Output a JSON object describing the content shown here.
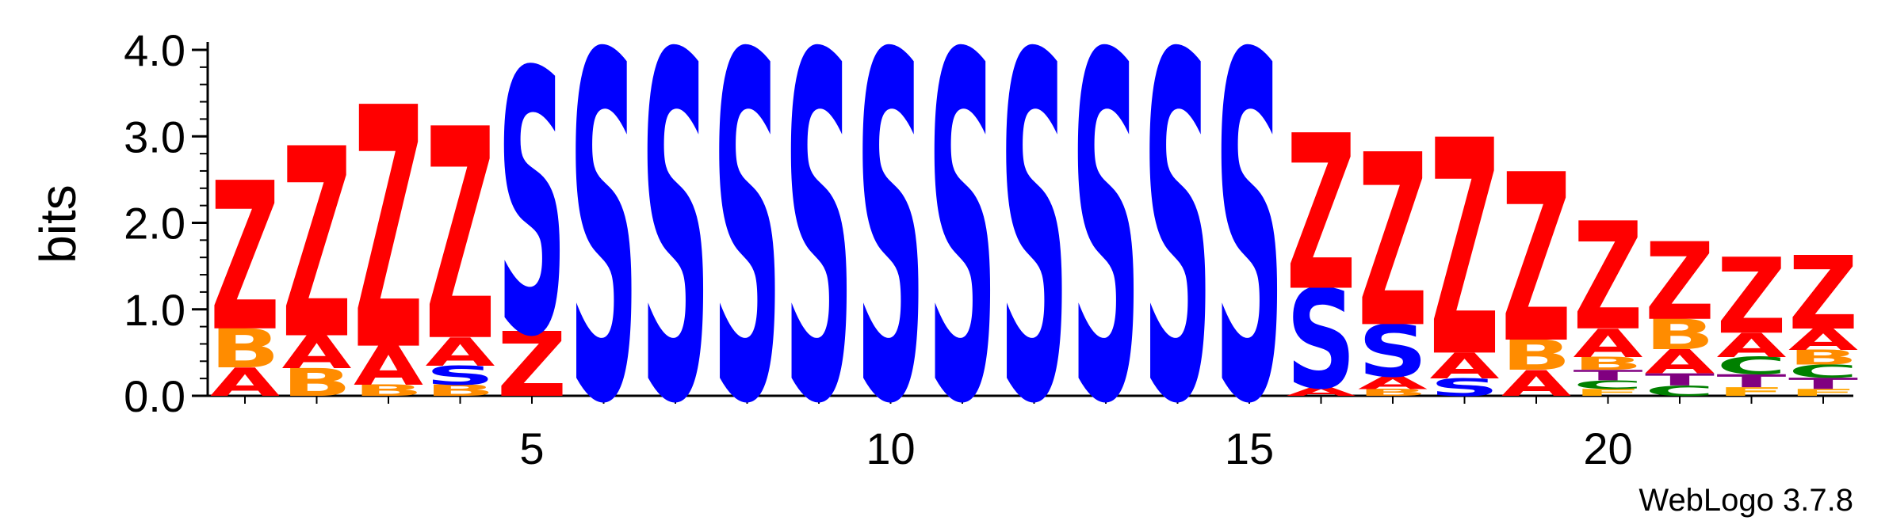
{
  "chart_data": {
    "type": "sequence-logo",
    "ylabel": "bits",
    "ylim": [
      0,
      4.0
    ],
    "yticks": [
      "0.0",
      "1.0",
      "2.0",
      "3.0",
      "4.0"
    ],
    "xticks": [
      5,
      10,
      15,
      20
    ],
    "footer": "WebLogo 3.7.8",
    "colors": {
      "Z": "#ff0000",
      "S": "#0000ff",
      "A": "#ff0000",
      "B": "#ff8c00",
      "C": "#008000",
      "T": "#800080",
      "F": "#ffa500"
    },
    "positions": [
      {
        "pos": 1,
        "stack": [
          {
            "letter": "A",
            "height": 0.33
          },
          {
            "letter": "B",
            "height": 0.45
          },
          {
            "letter": "Z",
            "height": 1.72
          }
        ]
      },
      {
        "pos": 2,
        "stack": [
          {
            "letter": "B",
            "height": 0.32
          },
          {
            "letter": "A",
            "height": 0.38
          },
          {
            "letter": "Z",
            "height": 2.2
          }
        ]
      },
      {
        "pos": 3,
        "stack": [
          {
            "letter": "B",
            "height": 0.13
          },
          {
            "letter": "A",
            "height": 0.45
          },
          {
            "letter": "Z",
            "height": 2.8
          }
        ]
      },
      {
        "pos": 4,
        "stack": [
          {
            "letter": "B",
            "height": 0.13
          },
          {
            "letter": "S",
            "height": 0.22
          },
          {
            "letter": "A",
            "height": 0.33
          },
          {
            "letter": "Z",
            "height": 2.45
          }
        ]
      },
      {
        "pos": 5,
        "stack": [
          {
            "letter": "Z",
            "height": 0.75
          },
          {
            "letter": "S",
            "height": 3.05
          }
        ]
      },
      {
        "pos": 6,
        "stack": [
          {
            "letter": "S",
            "height": 4.0
          }
        ]
      },
      {
        "pos": 7,
        "stack": [
          {
            "letter": "S",
            "height": 4.0
          }
        ]
      },
      {
        "pos": 8,
        "stack": [
          {
            "letter": "S",
            "height": 4.0
          }
        ]
      },
      {
        "pos": 9,
        "stack": [
          {
            "letter": "S",
            "height": 4.0
          }
        ]
      },
      {
        "pos": 10,
        "stack": [
          {
            "letter": "S",
            "height": 4.0
          }
        ]
      },
      {
        "pos": 11,
        "stack": [
          {
            "letter": "S",
            "height": 4.0
          }
        ]
      },
      {
        "pos": 12,
        "stack": [
          {
            "letter": "S",
            "height": 4.0
          }
        ]
      },
      {
        "pos": 13,
        "stack": [
          {
            "letter": "S",
            "height": 4.0
          }
        ]
      },
      {
        "pos": 14,
        "stack": [
          {
            "letter": "S",
            "height": 4.0
          }
        ]
      },
      {
        "pos": 15,
        "stack": [
          {
            "letter": "S",
            "height": 4.0
          }
        ]
      },
      {
        "pos": 16,
        "stack": [
          {
            "letter": "A",
            "height": 0.1
          },
          {
            "letter": "S",
            "height": 1.15
          },
          {
            "letter": "Z",
            "height": 1.8
          }
        ]
      },
      {
        "pos": 17,
        "stack": [
          {
            "letter": "B",
            "height": 0.08
          },
          {
            "letter": "A",
            "height": 0.15
          },
          {
            "letter": "S",
            "height": 0.6
          },
          {
            "letter": "Z",
            "height": 2.0
          }
        ]
      },
      {
        "pos": 18,
        "stack": [
          {
            "letter": "S",
            "height": 0.2
          },
          {
            "letter": "A",
            "height": 0.3
          },
          {
            "letter": "Z",
            "height": 2.5
          }
        ]
      },
      {
        "pos": 19,
        "stack": [
          {
            "letter": "A",
            "height": 0.3
          },
          {
            "letter": "B",
            "height": 0.35
          },
          {
            "letter": "Z",
            "height": 1.95
          }
        ]
      },
      {
        "pos": 20,
        "stack": [
          {
            "letter": "F",
            "height": 0.08
          },
          {
            "letter": "C",
            "height": 0.1
          },
          {
            "letter": "T",
            "height": 0.12
          },
          {
            "letter": "B",
            "height": 0.15
          },
          {
            "letter": "A",
            "height": 0.33
          },
          {
            "letter": "Z",
            "height": 1.25
          }
        ]
      },
      {
        "pos": 21,
        "stack": [
          {
            "letter": "C",
            "height": 0.12
          },
          {
            "letter": "T",
            "height": 0.14
          },
          {
            "letter": "A",
            "height": 0.28
          },
          {
            "letter": "B",
            "height": 0.35
          },
          {
            "letter": "Z",
            "height": 0.9
          }
        ]
      },
      {
        "pos": 22,
        "stack": [
          {
            "letter": "F",
            "height": 0.1
          },
          {
            "letter": "T",
            "height": 0.15
          },
          {
            "letter": "C",
            "height": 0.2
          },
          {
            "letter": "A",
            "height": 0.28
          },
          {
            "letter": "Z",
            "height": 0.88
          }
        ]
      },
      {
        "pos": 23,
        "stack": [
          {
            "letter": "F",
            "height": 0.08
          },
          {
            "letter": "T",
            "height": 0.13
          },
          {
            "letter": "C",
            "height": 0.15
          },
          {
            "letter": "B",
            "height": 0.17
          },
          {
            "letter": "A",
            "height": 0.25
          },
          {
            "letter": "Z",
            "height": 0.85
          }
        ]
      }
    ]
  }
}
